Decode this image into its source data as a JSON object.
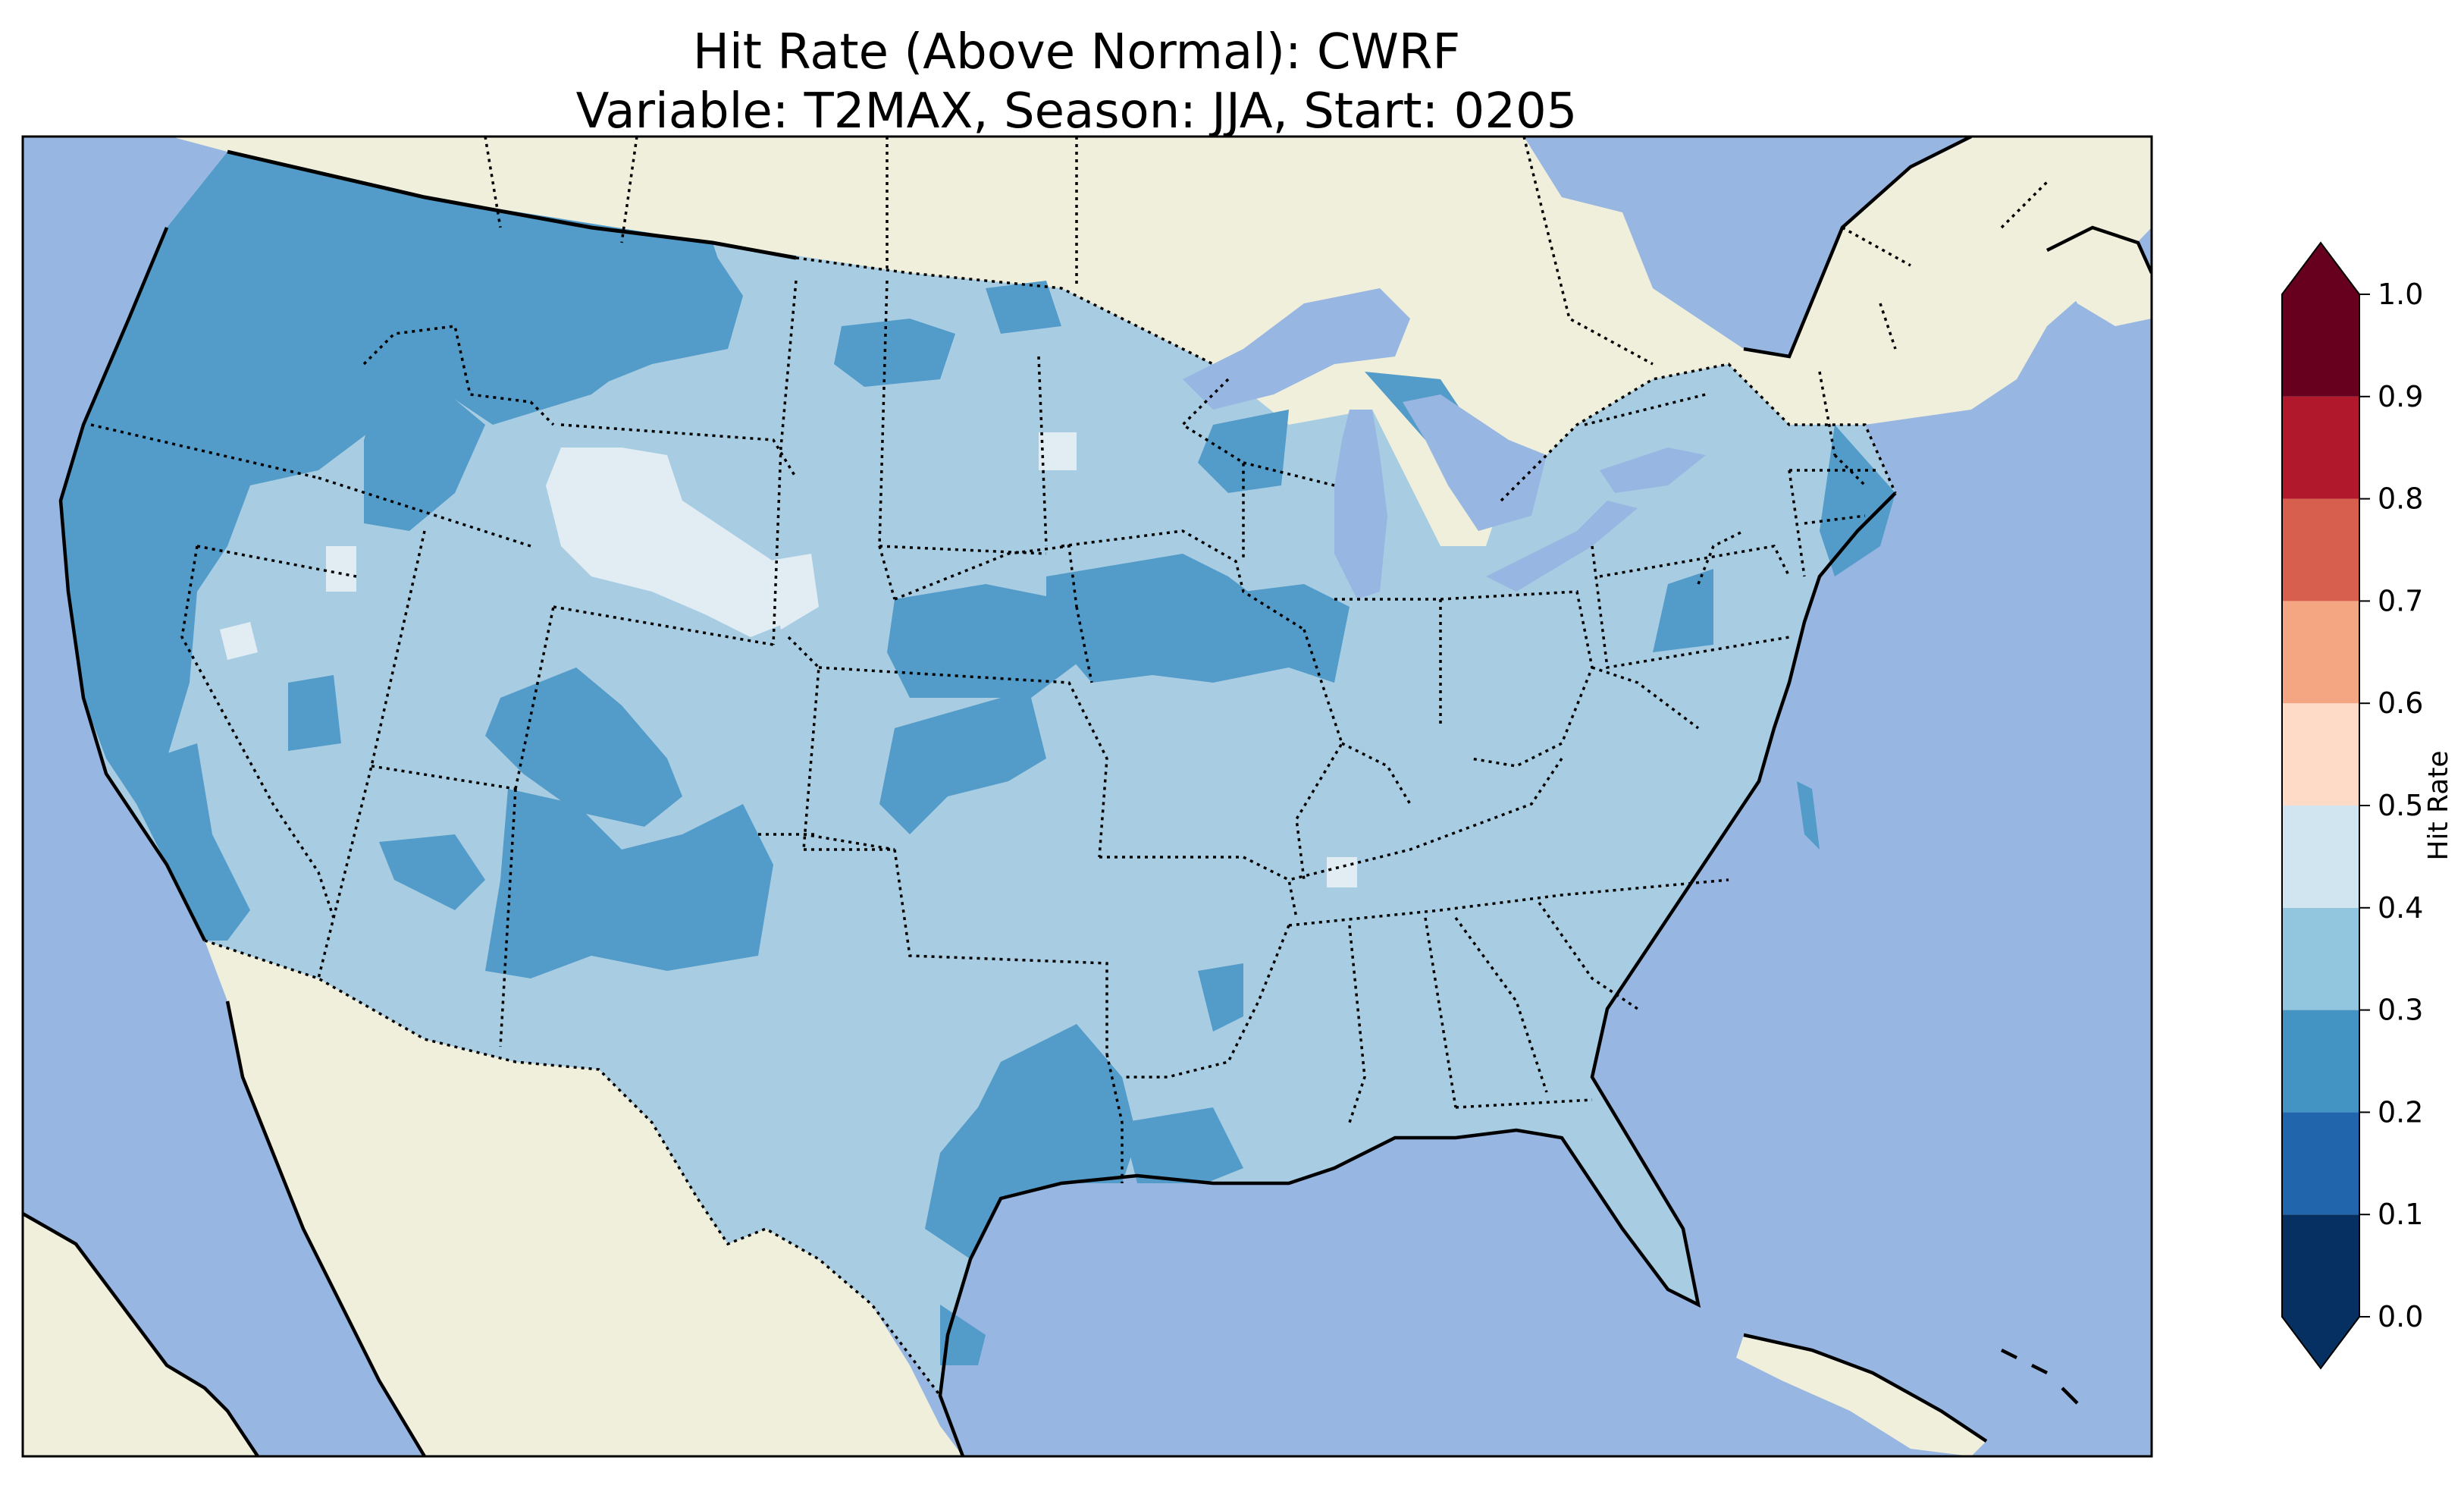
{
  "title": {
    "line1": "Hit Rate (Above Normal): CWRF",
    "line2": "Variable: T2MAX, Season: JJA, Start: 0205"
  },
  "colorbar": {
    "label": "Hit Rate",
    "ticks": [
      "0.0",
      "0.1",
      "0.2",
      "0.3",
      "0.4",
      "0.5",
      "0.6",
      "0.7",
      "0.8",
      "0.9",
      "1.0"
    ],
    "bins": [
      {
        "range": [
          0.0,
          0.1
        ],
        "color": "#053061"
      },
      {
        "range": [
          0.1,
          0.2
        ],
        "color": "#2166ac"
      },
      {
        "range": [
          0.2,
          0.3
        ],
        "color": "#4393c3"
      },
      {
        "range": [
          0.3,
          0.4
        ],
        "color": "#92c5de"
      },
      {
        "range": [
          0.4,
          0.5
        ],
        "color": "#d1e5f0"
      },
      {
        "range": [
          0.5,
          0.6
        ],
        "color": "#fddbc7"
      },
      {
        "range": [
          0.6,
          0.7
        ],
        "color": "#f4a582"
      },
      {
        "range": [
          0.7,
          0.8
        ],
        "color": "#d6604d"
      },
      {
        "range": [
          0.8,
          0.9
        ],
        "color": "#b2182b"
      },
      {
        "range": [
          0.9,
          1.0
        ],
        "color": "#67001f"
      }
    ],
    "extend": "both"
  },
  "map": {
    "projection": "Lambert Conformal",
    "region": "Contiguous United States",
    "colors": {
      "ocean": "#97b6e1",
      "land": "#efefdb",
      "lake": "#97b6e1",
      "hit_02_03": "#539bc9",
      "hit_03_04": "#a8cde3",
      "hit_04_05": "#e1ecf3"
    }
  }
}
